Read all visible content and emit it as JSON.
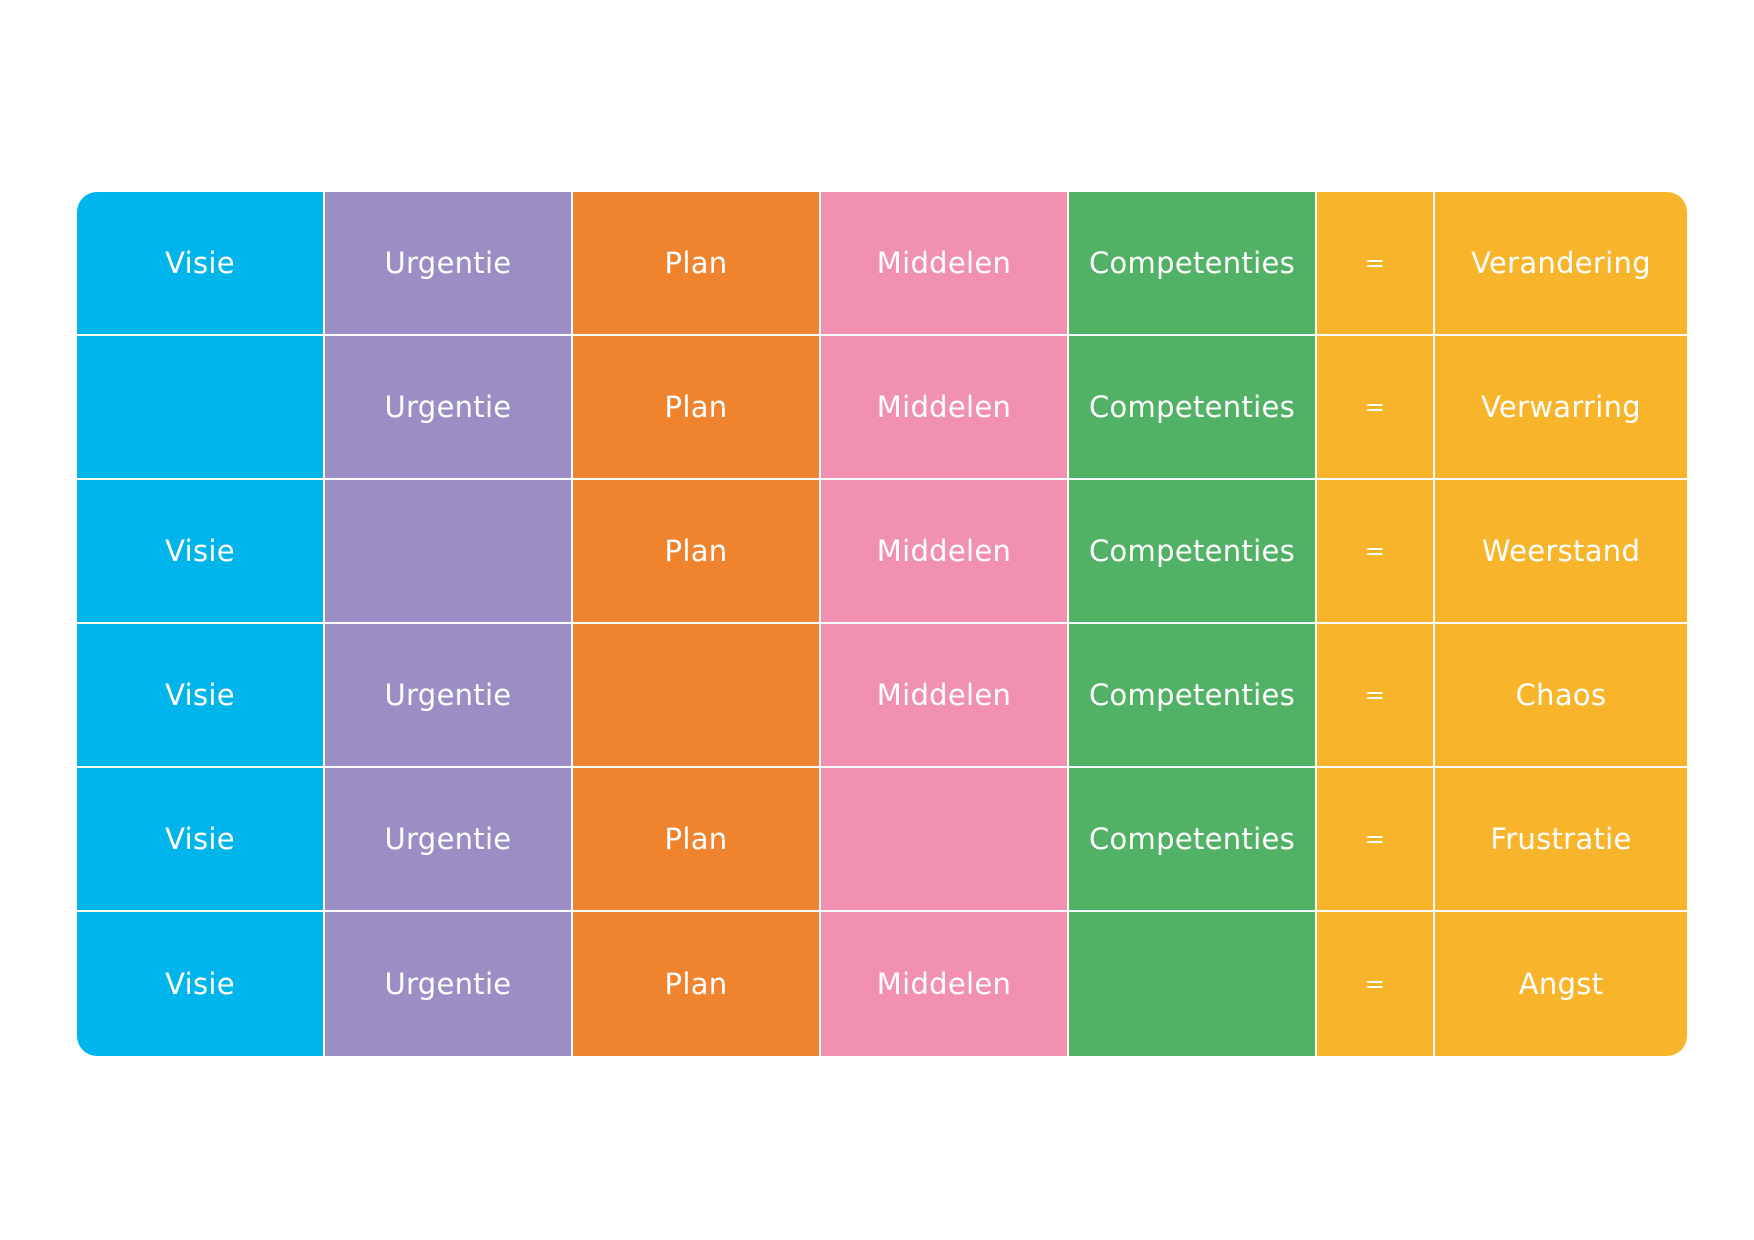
{
  "colors": {
    "visie": "#00b5ec",
    "urgentie": "#9b8ec4",
    "plan": "#f0832e",
    "middelen": "#f190b0",
    "competenties": "#51b265",
    "result": "#f8b52b",
    "text": "#ffffff"
  },
  "rows": [
    {
      "visie": "Visie",
      "urgentie": "Urgentie",
      "plan": "Plan",
      "middelen": "Middelen",
      "competenties": "Competenties",
      "eq": "=",
      "result": "Verandering"
    },
    {
      "visie": "",
      "urgentie": "Urgentie",
      "plan": "Plan",
      "middelen": "Middelen",
      "competenties": "Competenties",
      "eq": "=",
      "result": "Verwarring"
    },
    {
      "visie": "Visie",
      "urgentie": "",
      "plan": "Plan",
      "middelen": "Middelen",
      "competenties": "Competenties",
      "eq": "=",
      "result": "Weerstand"
    },
    {
      "visie": "Visie",
      "urgentie": "Urgentie",
      "plan": "",
      "middelen": "Middelen",
      "competenties": "Competenties",
      "eq": "=",
      "result": "Chaos"
    },
    {
      "visie": "Visie",
      "urgentie": "Urgentie",
      "plan": "Plan",
      "middelen": "",
      "competenties": "Competenties",
      "eq": "=",
      "result": "Frustratie"
    },
    {
      "visie": "Visie",
      "urgentie": "Urgentie",
      "plan": "Plan",
      "middelen": "Middelen",
      "competenties": "",
      "eq": "=",
      "result": "Angst"
    }
  ]
}
